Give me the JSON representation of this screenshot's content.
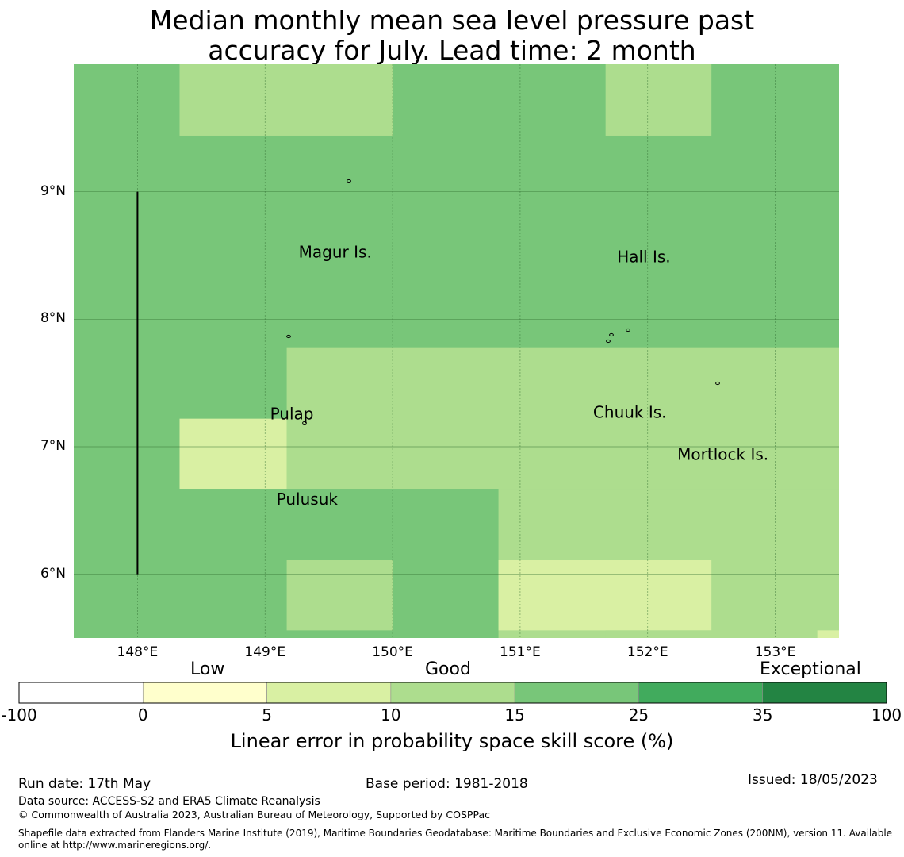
{
  "title_line1": "Median monthly mean sea level pressure past",
  "title_line2": "accuracy for July. Lead time: 2 month",
  "map": {
    "lon_range": [
      147.5,
      153.5
    ],
    "lat_range": [
      5.5,
      10.0
    ],
    "lon_ticks": [
      {
        "value": 148,
        "label": "148°E"
      },
      {
        "value": 149,
        "label": "149°E"
      },
      {
        "value": 150,
        "label": "150°E"
      },
      {
        "value": 151,
        "label": "151°E"
      },
      {
        "value": 152,
        "label": "152°E"
      },
      {
        "value": 153,
        "label": "153°E"
      }
    ],
    "lat_ticks": [
      {
        "value": 9,
        "label": "9°N"
      },
      {
        "value": 8,
        "label": "8°N"
      },
      {
        "value": 7,
        "label": "7°N"
      },
      {
        "value": 6,
        "label": "6°N"
      }
    ],
    "background_category": "15-25",
    "skill_regions": [
      {
        "lon": [
          148.33,
          150.0
        ],
        "lat": [
          9.44,
          10.0
        ],
        "category": "10-15"
      },
      {
        "lon": [
          151.67,
          152.5
        ],
        "lat": [
          9.44,
          10.0
        ],
        "category": "10-15"
      },
      {
        "lon": [
          149.17,
          153.5
        ],
        "lat": [
          6.67,
          7.78
        ],
        "category": "10-15"
      },
      {
        "lon": [
          148.33,
          149.17
        ],
        "lat": [
          6.67,
          7.22
        ],
        "category": "5-10"
      },
      {
        "lon": [
          150.83,
          153.5
        ],
        "lat": [
          5.5,
          6.67
        ],
        "category": "10-15"
      },
      {
        "lon": [
          149.17,
          150.0
        ],
        "lat": [
          5.56,
          6.11
        ],
        "category": "10-15"
      },
      {
        "lon": [
          150.83,
          152.5
        ],
        "lat": [
          5.56,
          6.11
        ],
        "category": "5-10"
      },
      {
        "lon": [
          151.67,
          153.5
        ],
        "lat": [
          5.5,
          5.56
        ],
        "category": "10-15"
      },
      {
        "lon": [
          153.33,
          153.5
        ],
        "lat": [
          5.5,
          5.56
        ],
        "category": "5-10"
      }
    ],
    "boundary_line": {
      "lon": 148.0,
      "lat": [
        6.0,
        9.0
      ]
    },
    "places": [
      {
        "name": "Magur Is.",
        "lon": 149.55,
        "lat": 8.52
      },
      {
        "name": "Hall Is.",
        "lon": 151.97,
        "lat": 8.48
      },
      {
        "name": "Pulap",
        "lon": 149.21,
        "lat": 7.25
      },
      {
        "name": "Chuuk Is.",
        "lon": 151.86,
        "lat": 7.26
      },
      {
        "name": "Mortlock Is.",
        "lon": 152.59,
        "lat": 6.93
      },
      {
        "name": "Pulusuk",
        "lon": 149.33,
        "lat": 6.58
      }
    ]
  },
  "colorbar": {
    "categories": [
      "Low",
      "Good",
      "Exceptional"
    ],
    "bins": [
      {
        "range": "-100-0",
        "color": "#ffffff"
      },
      {
        "range": "0-5",
        "color": "#ffffcc"
      },
      {
        "range": "5-10",
        "color": "#d9f0a3"
      },
      {
        "range": "10-15",
        "color": "#addd8e"
      },
      {
        "range": "15-25",
        "color": "#78c679"
      },
      {
        "range": "25-35",
        "color": "#41ab5d"
      },
      {
        "range": "35-100",
        "color": "#238443"
      }
    ],
    "tick_labels": [
      "-100",
      "0",
      "5",
      "10",
      "15",
      "25",
      "35",
      "100"
    ],
    "label": "Linear error in probability space skill score (%)"
  },
  "footer": {
    "run_date": "Run date: 17th May",
    "base_period": "Base period: 1981-2018",
    "issued": "Issued: 18/05/2023",
    "data_source": "Data source: ACCESS-S2 and ERA5 Climate Reanalysis",
    "copyright": "© Commonwealth of Australia 2023, Australian Bureau of Meteorology, Supported by COSPPac",
    "shapefile_line1": "Shapefile data extracted from Flanders Marine Institute (2019), Maritime Boundaries Geodatabase: Maritime Boundaries and Exclusive Economic Zones (200NM), version 11. Available",
    "shapefile_line2": "online at http://www.marineregions.org/."
  }
}
